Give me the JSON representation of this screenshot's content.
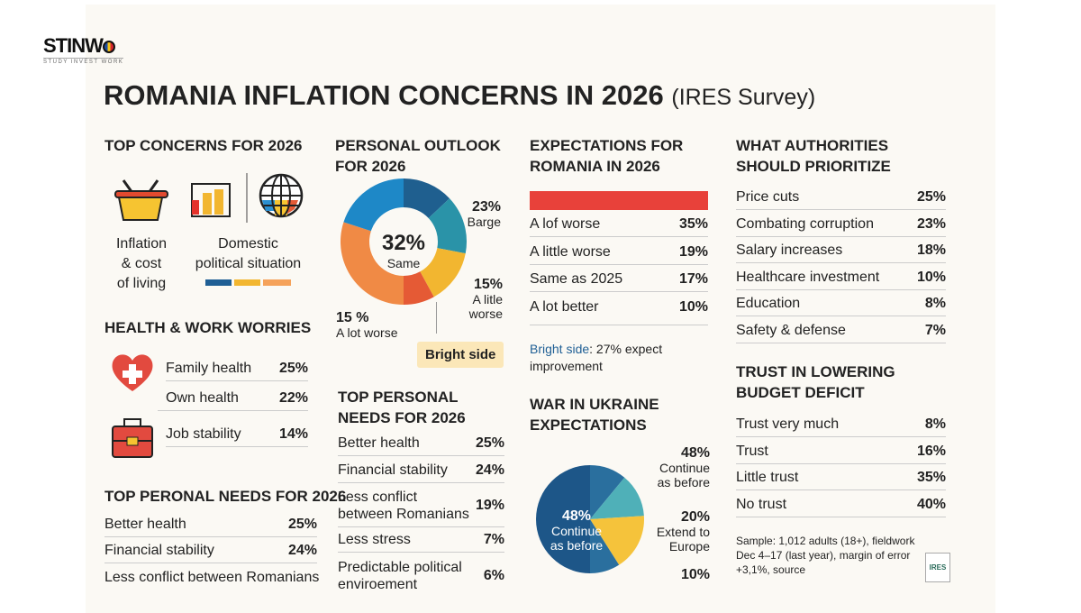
{
  "logo": {
    "name": "STINW",
    "tag": "STUDY INVEST WORK"
  },
  "title": {
    "main": "ROMANIA INFLATION CONCERNS IN 2026",
    "sub": "(IRES Survey)"
  },
  "top_concerns": {
    "title": "TOP CONCERNS FOR 2026",
    "items": [
      {
        "label_lines": [
          "Inflation",
          "& cost",
          "of living"
        ],
        "icon": "basket-icon"
      },
      {
        "label_lines": [
          "Domestic",
          "political situation"
        ],
        "icon": "bar-chart-icon"
      },
      {
        "icon": "globe-icon"
      }
    ],
    "bar_colors": [
      "#1f5f95",
      "#f2b630",
      "#f5a25a"
    ]
  },
  "health_work": {
    "title": "HEALTH & WORK WORRIES",
    "items": [
      {
        "label": "Family health",
        "value": "25%"
      },
      {
        "label": "Own health",
        "value": "22%"
      },
      {
        "label": "Job stability",
        "value": "14%"
      }
    ]
  },
  "top_needs_left": {
    "title": "TOP PERONAL NEEDS FOR 2026",
    "items": [
      {
        "label": "Better health",
        "value": "25%"
      },
      {
        "label": "Financial stability",
        "value": "24%"
      },
      {
        "label": "Less conflict between Romanians",
        "value": ""
      }
    ]
  },
  "personal_outlook": {
    "title_lines": [
      "PERSONAL OUTLOOK",
      "FOR 2026"
    ],
    "center": {
      "value": "32%",
      "label": "Same"
    },
    "callouts": [
      {
        "value": "23%",
        "label": "Barge"
      },
      {
        "value": "15%",
        "label_lines": [
          "A litle",
          "worse"
        ]
      },
      {
        "value": "15 %",
        "label": "A lot worse"
      }
    ],
    "bright_side": "Bright side"
  },
  "top_needs_mid": {
    "title_lines": [
      "TOP PERSONAL",
      "NEEDS FOR 2026"
    ],
    "items": [
      {
        "label": "Better health",
        "value": "25%"
      },
      {
        "label": "Financial stability",
        "value": "24%"
      },
      {
        "label": "Less conflict between Romanians",
        "value": "19%"
      },
      {
        "label": "Less stress",
        "value": "7%"
      },
      {
        "label": "Predictable political enviroement",
        "value": "6%"
      }
    ]
  },
  "romania_expect": {
    "title_lines": [
      "EXPECTATIONS FOR",
      "ROMANIA IN 2026"
    ],
    "bar_color": "#e8413a",
    "items": [
      {
        "label": "A lof worse",
        "value": "35%"
      },
      {
        "label": "A little worse",
        "value": "19%"
      },
      {
        "label": "Same as 2025",
        "value": "17%"
      },
      {
        "label": "A lot better",
        "value": "10%"
      }
    ],
    "bright_label": "Bright side",
    "bright_text": ": 27% expect improvement"
  },
  "ukraine": {
    "title_lines": [
      "WAR IN UKRAINE",
      "EXPECTATIONS"
    ],
    "inner": {
      "value": "48%",
      "label_lines": [
        "Continue",
        "as before"
      ]
    },
    "callouts": [
      {
        "value": "48%",
        "label_lines": [
          "Continue",
          "as before"
        ]
      },
      {
        "value": "20%",
        "label_lines": [
          "Extend to",
          "Europe"
        ]
      },
      {
        "value": "10%"
      }
    ]
  },
  "authorities": {
    "title_lines": [
      "WHAT AUTHORITIES",
      "SHOULD PRIORITIZE"
    ],
    "items": [
      {
        "label": "Price cuts",
        "value": "25%"
      },
      {
        "label": "Combating corruption",
        "value": "23%"
      },
      {
        "label": "Salary increases",
        "value": "18%"
      },
      {
        "label": "Healthcare investment",
        "value": "10%"
      },
      {
        "label": "Education",
        "value": "8%"
      },
      {
        "label": "Safety & defense",
        "value": "7%"
      }
    ]
  },
  "trust": {
    "title_lines": [
      "TRUST IN LOWERING",
      "BUDGET DEFICIT"
    ],
    "items": [
      {
        "label": "Trust very much",
        "value": "8%"
      },
      {
        "label": "Trust",
        "value": "16%"
      },
      {
        "label": "Little trust",
        "value": "35%"
      },
      {
        "label": "No trust",
        "value": "40%"
      }
    ]
  },
  "footnote": {
    "lines": [
      "Sample: 1,012 adults (18+), fieldwork",
      "Dec 4–17 (last year), margin of error",
      "+3,1%, source"
    ],
    "badge": "IRES"
  },
  "chart_data": [
    {
      "type": "pie",
      "variant": "donut",
      "title": "PERSONAL OUTLOOK FOR 2026",
      "slices": [
        {
          "value": 13,
          "color": "#1f5f8f"
        },
        {
          "value": 15,
          "color": "#2a93a8"
        },
        {
          "value": 14,
          "color": "#f2b630"
        },
        {
          "value": 8,
          "color": "#e55a35"
        },
        {
          "value": 30,
          "color": "#f08a45"
        },
        {
          "value": 20,
          "color": "#1e88c7"
        }
      ]
    },
    {
      "type": "pie",
      "title": "WAR IN UKRAINE EXPECTATIONS",
      "slices": [
        {
          "value": 11,
          "color": "#2a6f9e"
        },
        {
          "value": 13,
          "color": "#4fb0b8"
        },
        {
          "value": 17,
          "color": "#f5c33b"
        },
        {
          "value": 9,
          "color": "#2a6f9e"
        },
        {
          "value": 50,
          "color": "#1d5688"
        }
      ]
    }
  ]
}
